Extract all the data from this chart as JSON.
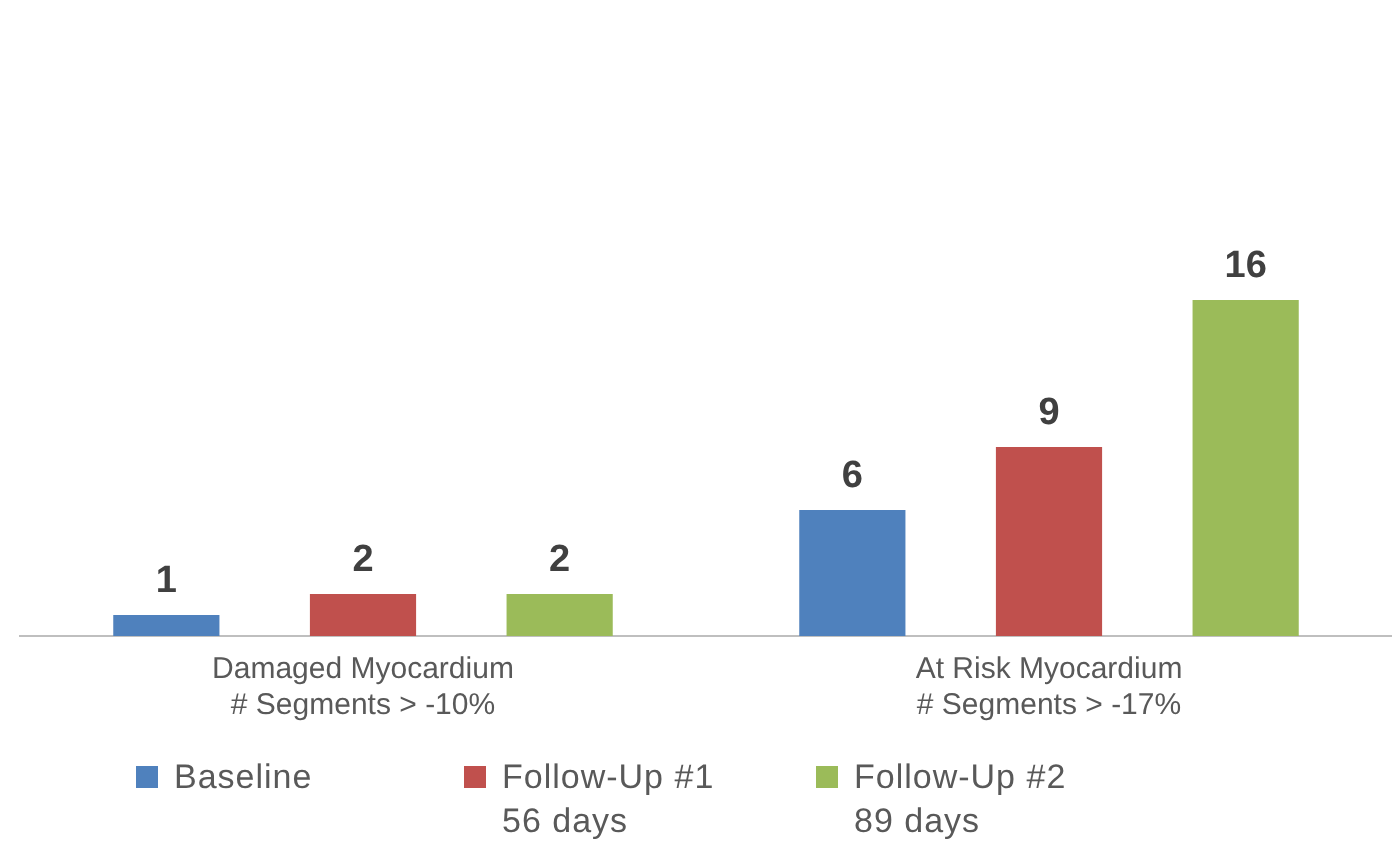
{
  "chart_data": {
    "type": "bar",
    "categories": [
      "Damaged Myocardium\n# Segments > -10%",
      "At Risk Myocardium\n# Segments > -17%"
    ],
    "series": [
      {
        "name": "Baseline",
        "color": "#4f81bd",
        "values": [
          1,
          6
        ]
      },
      {
        "name": "Follow-Up #1\n56 days",
        "color": "#c0504d",
        "values": [
          2,
          9
        ]
      },
      {
        "name": "Follow-Up #2\n89 days",
        "color": "#9bbb59",
        "values": [
          2,
          16
        ]
      }
    ],
    "data_labels": true,
    "legend": "bottom",
    "grid": false
  }
}
